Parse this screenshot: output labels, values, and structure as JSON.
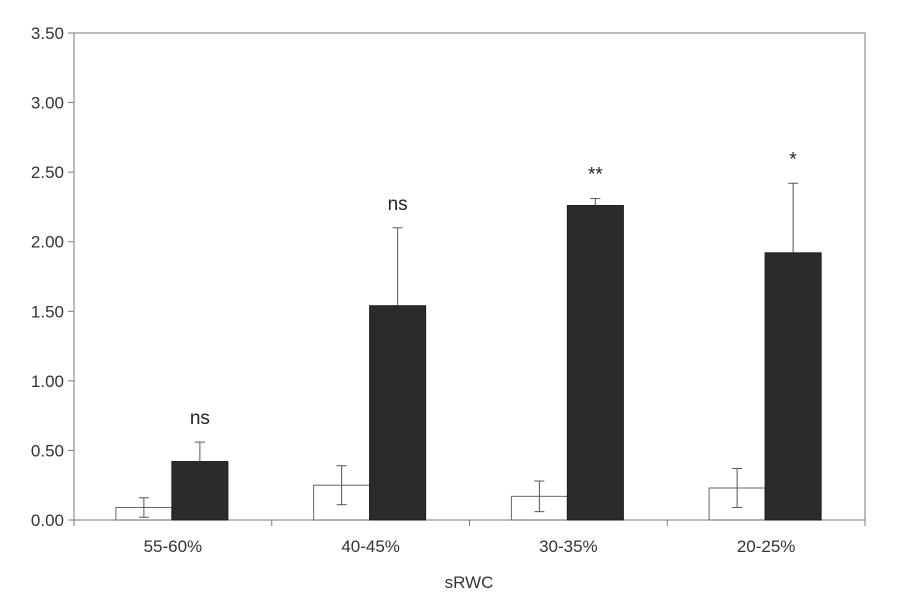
{
  "chart_data": {
    "type": "bar",
    "xlabel": "sRWC",
    "ylabel": "",
    "title": "",
    "ylim": [
      0,
      3.5
    ],
    "y_ticks": [
      "0.00",
      "0.50",
      "1.00",
      "1.50",
      "2.00",
      "2.50",
      "3.00",
      "3.50"
    ],
    "categories": [
      "55-60%",
      "40-45%",
      "30-35%",
      "20-25%"
    ],
    "series": [
      {
        "color": "#ffffff",
        "stroke": "#666666",
        "values": [
          0.09,
          0.25,
          0.17,
          0.23
        ],
        "errors": [
          0.07,
          0.14,
          0.11,
          0.14
        ]
      },
      {
        "color": "#2b2b2b",
        "stroke": "#1a1a1a",
        "values": [
          0.42,
          1.54,
          2.26,
          1.92
        ],
        "errors": [
          0.14,
          0.56,
          0.05,
          0.5
        ]
      }
    ],
    "significance": [
      "ns",
      "ns",
      "**",
      "*"
    ],
    "grid": false,
    "legend": "none"
  }
}
